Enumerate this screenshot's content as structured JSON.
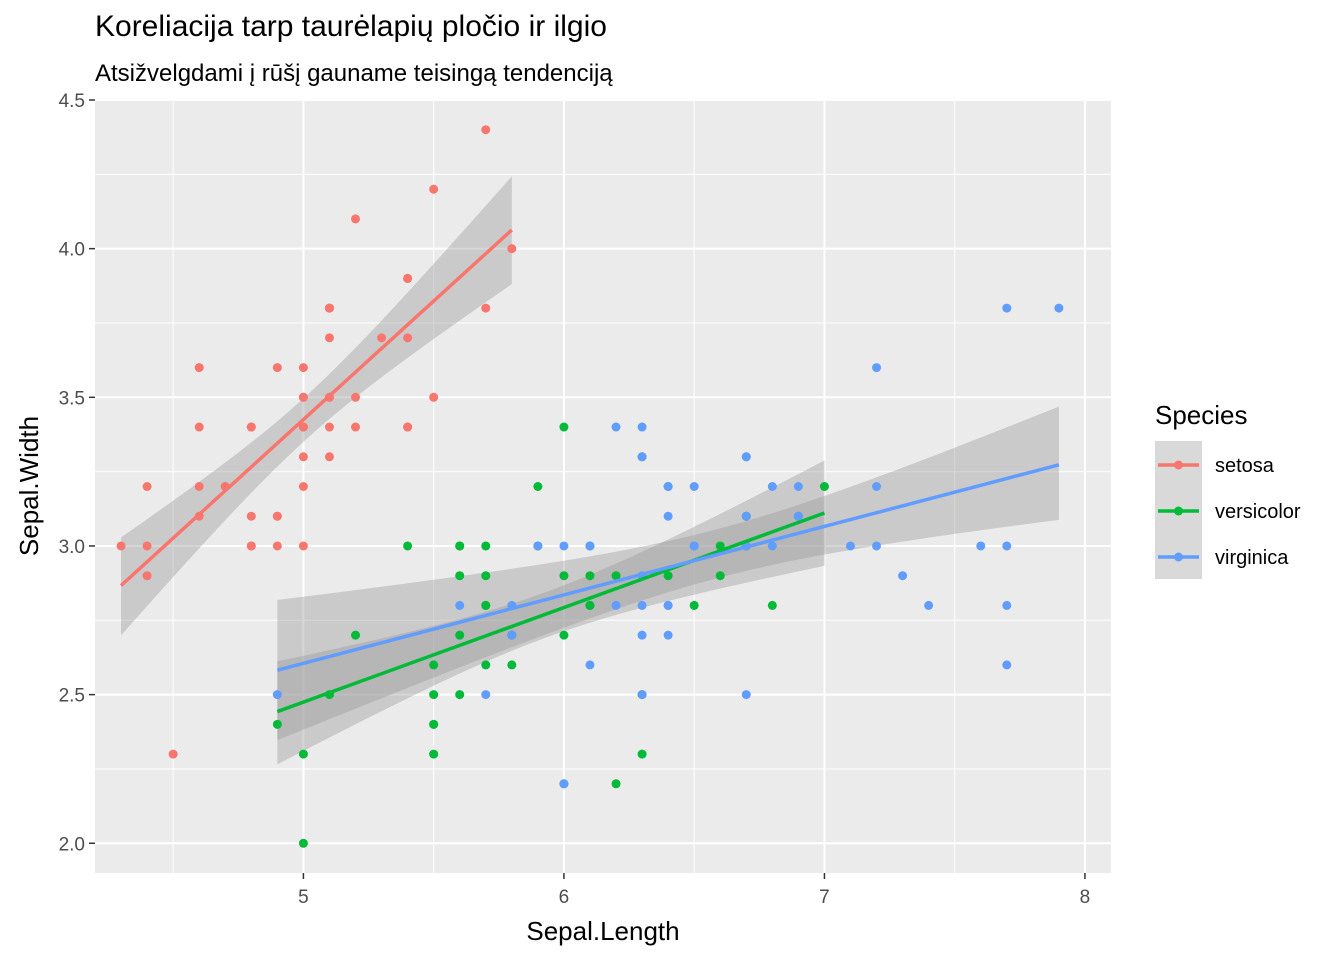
{
  "chart_data": {
    "type": "scatter",
    "title": "Koreliacija tarp taurėlapių pločio ir ilgio",
    "subtitle": "Atsižvelgdami į rūšį gauname teisingą tendenciją",
    "xlabel": "Sepal.Length",
    "ylabel": "Sepal.Width",
    "xlim": [
      4.2,
      8.1
    ],
    "ylim": [
      1.9,
      4.5
    ],
    "xticks": [
      5,
      6,
      7,
      8
    ],
    "yticks": [
      2.0,
      2.5,
      3.0,
      3.5,
      4.0,
      4.5
    ],
    "xtick_labels": [
      "5",
      "6",
      "7",
      "8"
    ],
    "ytick_labels": [
      "2.0",
      "2.5",
      "3.0",
      "3.5",
      "4.0",
      "4.5"
    ],
    "grid": true,
    "legend": {
      "title": "Species",
      "position": "right"
    },
    "series": [
      {
        "name": "setosa",
        "color": "#F8766D",
        "x": [
          5.1,
          4.9,
          4.7,
          4.6,
          5.0,
          5.4,
          4.6,
          5.0,
          4.4,
          4.9,
          5.4,
          4.8,
          4.8,
          4.3,
          5.8,
          5.7,
          5.4,
          5.1,
          5.7,
          5.1,
          5.4,
          5.1,
          4.6,
          5.1,
          4.8,
          5.0,
          5.0,
          5.2,
          5.2,
          4.7,
          4.8,
          5.4,
          5.2,
          5.5,
          4.9,
          5.0,
          5.5,
          4.9,
          4.4,
          5.1,
          5.0,
          4.5,
          4.4,
          5.0,
          5.1,
          4.8,
          5.1,
          4.6,
          5.3,
          5.0
        ],
        "y": [
          3.5,
          3.0,
          3.2,
          3.1,
          3.6,
          3.9,
          3.4,
          3.4,
          2.9,
          3.1,
          3.7,
          3.4,
          3.0,
          3.0,
          4.0,
          4.4,
          3.9,
          3.5,
          3.8,
          3.8,
          3.4,
          3.7,
          3.6,
          3.3,
          3.4,
          3.0,
          3.4,
          3.5,
          3.4,
          3.2,
          3.1,
          3.4,
          4.1,
          4.2,
          3.1,
          3.2,
          3.5,
          3.6,
          3.0,
          3.4,
          3.5,
          2.3,
          3.2,
          3.5,
          3.8,
          3.0,
          3.8,
          3.2,
          3.7,
          3.3
        ],
        "fit": {
          "x": [
            4.3,
            5.8
          ],
          "y": [
            2.867,
            4.063
          ]
        }
      },
      {
        "name": "versicolor",
        "color": "#00BA38",
        "x": [
          7.0,
          6.4,
          6.9,
          5.5,
          6.5,
          5.7,
          6.3,
          4.9,
          6.6,
          5.2,
          5.0,
          5.9,
          6.0,
          6.1,
          5.6,
          6.7,
          5.6,
          5.8,
          6.2,
          5.6,
          5.9,
          6.1,
          6.3,
          6.1,
          6.4,
          6.6,
          6.8,
          6.7,
          6.0,
          5.7,
          5.5,
          5.5,
          5.8,
          6.0,
          5.4,
          6.0,
          6.7,
          6.3,
          5.6,
          5.5,
          5.5,
          6.1,
          5.8,
          5.0,
          5.6,
          5.7,
          5.7,
          6.2,
          5.1,
          5.7
        ],
        "y": [
          3.2,
          3.2,
          3.1,
          2.3,
          2.8,
          2.8,
          3.3,
          2.4,
          2.9,
          2.7,
          2.0,
          3.0,
          2.2,
          2.9,
          2.9,
          3.1,
          3.0,
          2.7,
          2.2,
          2.5,
          3.2,
          2.8,
          2.5,
          2.8,
          2.9,
          3.0,
          2.8,
          3.0,
          2.9,
          2.6,
          2.4,
          2.4,
          2.7,
          2.7,
          3.0,
          3.4,
          3.1,
          2.3,
          3.0,
          2.5,
          2.6,
          3.0,
          2.6,
          2.3,
          2.7,
          3.0,
          2.9,
          2.9,
          2.5,
          2.8
        ],
        "fit": {
          "x": [
            4.9,
            7.0
          ],
          "y": [
            2.443,
            3.111
          ]
        }
      },
      {
        "name": "virginica",
        "color": "#619CFF",
        "x": [
          6.3,
          5.8,
          7.1,
          6.3,
          6.5,
          7.6,
          4.9,
          7.3,
          6.7,
          7.2,
          6.5,
          6.4,
          6.8,
          5.7,
          5.8,
          6.4,
          6.5,
          7.7,
          7.7,
          6.0,
          6.9,
          5.6,
          7.7,
          6.3,
          6.7,
          7.2,
          6.2,
          6.1,
          6.4,
          7.2,
          7.4,
          7.9,
          6.4,
          6.3,
          6.1,
          7.7,
          6.3,
          6.4,
          6.0,
          6.9,
          6.7,
          6.9,
          5.8,
          6.8,
          6.7,
          6.7,
          6.3,
          6.5,
          6.2,
          5.9
        ],
        "y": [
          3.3,
          2.7,
          3.0,
          2.9,
          3.0,
          3.0,
          2.5,
          2.9,
          2.5,
          3.6,
          3.2,
          2.7,
          3.0,
          2.5,
          2.8,
          3.2,
          3.0,
          3.8,
          2.6,
          2.2,
          3.2,
          2.8,
          2.8,
          2.7,
          3.3,
          3.2,
          2.8,
          3.0,
          2.8,
          3.0,
          2.8,
          3.8,
          2.8,
          2.8,
          2.6,
          3.0,
          3.4,
          3.1,
          3.0,
          3.1,
          3.1,
          3.1,
          2.7,
          3.2,
          3.3,
          3.0,
          2.5,
          3.0,
          3.4,
          3.0
        ],
        "fit": {
          "x": [
            4.9,
            7.9
          ],
          "y": [
            2.582,
            3.273
          ]
        }
      }
    ]
  }
}
